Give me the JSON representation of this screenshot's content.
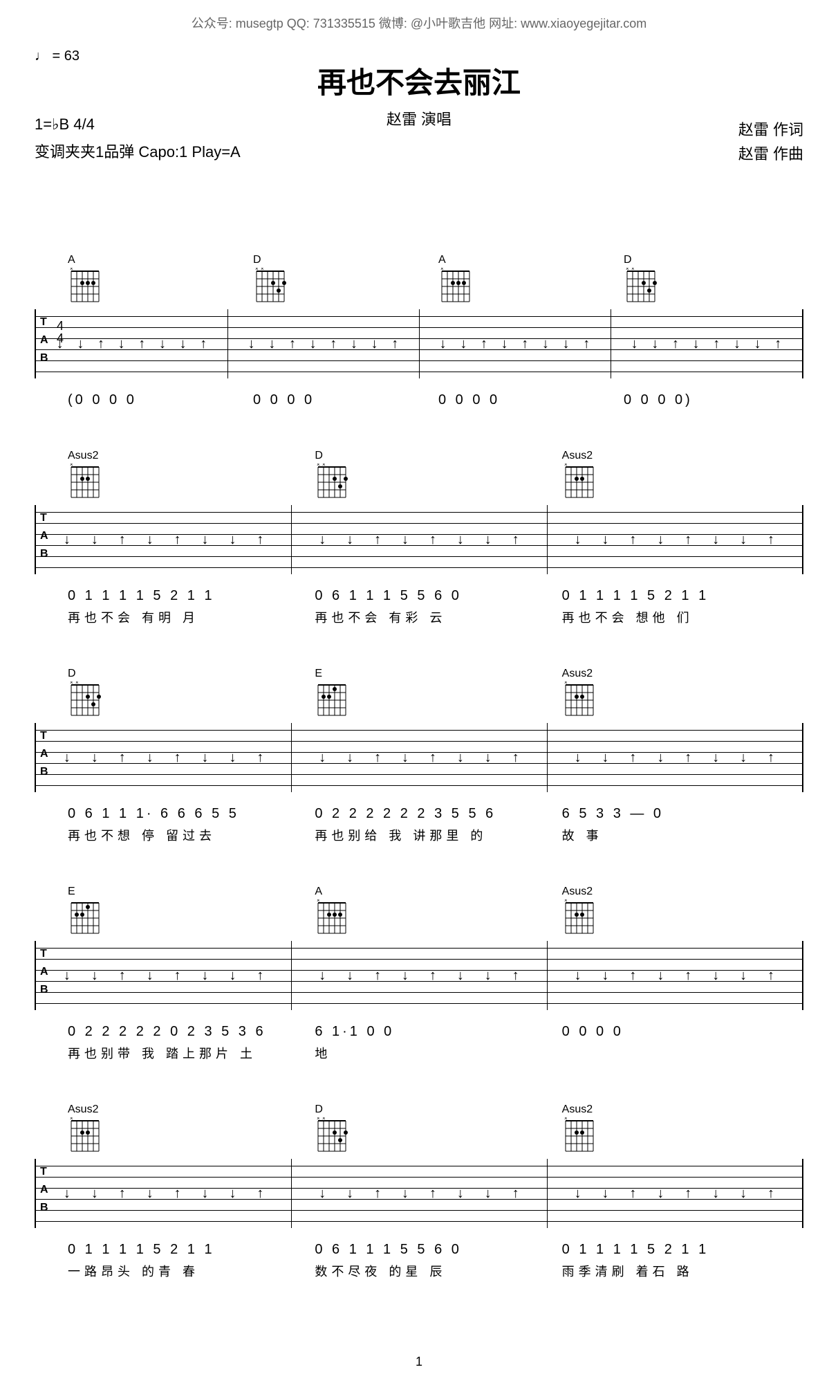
{
  "header": {
    "contact": "公众号: musegtp  QQ: 731335515  微博: @小叶歌吉他  网址: www.xiaoyegejitar.com",
    "tempo": "♩ = 63",
    "title": "再也不会去丽江",
    "performer": "赵雷 演唱",
    "lyricist": "赵雷  作词",
    "composer": "赵雷  作曲",
    "key": "1=♭B  4/4",
    "capo": "变调夹夹1品弹 Capo:1 Play=A"
  },
  "chords": {
    "A": "A",
    "D": "D",
    "E": "E",
    "Asus2": "Asus2"
  },
  "systems": [
    {
      "chord_slots": [
        "A",
        "D",
        "A",
        "D"
      ],
      "show_ts": true,
      "notation": [
        {
          "nums": "(0  0  0  0",
          "lyrics": ""
        },
        {
          "nums": "0  0  0  0",
          "lyrics": ""
        },
        {
          "nums": "0  0  0  0",
          "lyrics": ""
        },
        {
          "nums": "0  0  0  0)",
          "lyrics": ""
        }
      ]
    },
    {
      "chord_slots": [
        "Asus2",
        "D",
        "Asus2"
      ],
      "notation": [
        {
          "nums": "0 1 1 1 1  5 2 1  1",
          "lyrics": "再也不会 有明 月"
        },
        {
          "nums": "0 6 1 1 1  5 5 6 0",
          "lyrics": "再也不会 有彩 云"
        },
        {
          "nums": "0 1 1 1 1  5 2 1  1",
          "lyrics": "再也不会 想他 们"
        }
      ]
    },
    {
      "chord_slots": [
        "D",
        "E",
        "Asus2"
      ],
      "notation": [
        {
          "nums": "0 6 1 1 1·  6 6  6 5 5",
          "lyrics": "再也不想  停 留过去"
        },
        {
          "nums": "0  2 2 2 2  2 2  3 5 5 6",
          "lyrics": "再也别给 我  讲那里 的"
        },
        {
          "nums": "6 5 3  3    —    0",
          "lyrics": "故 事"
        }
      ]
    },
    {
      "chord_slots": [
        "E",
        "A",
        "Asus2"
      ],
      "notation": [
        {
          "nums": "0  2 2 2 2  2 0  2 3 5 3 6",
          "lyrics": "再也别带 我  踏上那片 土"
        },
        {
          "nums": "6 1·1    0    0",
          "lyrics": "地"
        },
        {
          "nums": "0    0    0    0",
          "lyrics": ""
        }
      ]
    },
    {
      "chord_slots": [
        "Asus2",
        "D",
        "Asus2"
      ],
      "notation": [
        {
          "nums": "0 1 1 1 1  5 2 1  1",
          "lyrics": "一路昂头 的青 春"
        },
        {
          "nums": "0 6 1 1 1  5 5 6 0",
          "lyrics": "数不尽夜 的星 辰"
        },
        {
          "nums": "0 1 1 1 1  5 2 1  1",
          "lyrics": "雨季清刷 着石 路"
        }
      ]
    }
  ],
  "page_num": "1",
  "colors": {
    "text": "#000000",
    "meta": "#666666",
    "bg": "#ffffff"
  }
}
